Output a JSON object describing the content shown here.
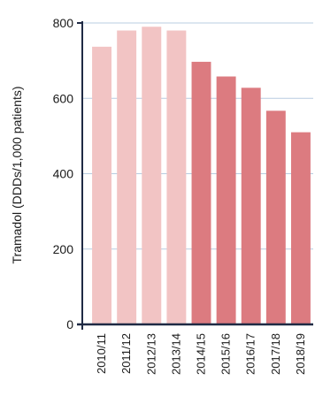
{
  "chart_data": {
    "type": "bar",
    "title": "",
    "xlabel": "",
    "ylabel": "Tramadol (DDDs/1,000 patients)",
    "ylim": [
      0,
      800
    ],
    "yticks": [
      0,
      200,
      400,
      600,
      800
    ],
    "grid": true,
    "categories": [
      "2010/11",
      "2011/12",
      "2012/13",
      "2013/14",
      "2014/15",
      "2015/16",
      "2016/17",
      "2017/18",
      "2018/19"
    ],
    "values": [
      737,
      780,
      790,
      780,
      697,
      658,
      628,
      567,
      510
    ],
    "bar_colors": [
      "#f2c4c4",
      "#f2c4c4",
      "#f2c4c4",
      "#f2c4c4",
      "#dc7b80",
      "#dc7b80",
      "#dc7b80",
      "#dc7b80",
      "#dc7b80"
    ],
    "axis_color": "#1f2a44",
    "grid_color": "#b8cce0"
  }
}
